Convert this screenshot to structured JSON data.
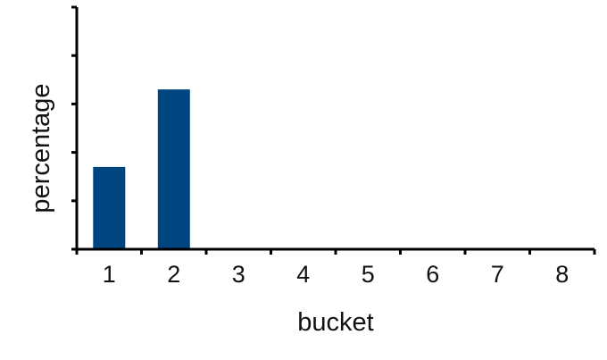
{
  "chart_data": {
    "type": "bar",
    "categories": [
      "1",
      "2",
      "3",
      "4",
      "5",
      "6",
      "7",
      "8"
    ],
    "values": [
      17,
      33,
      0,
      0,
      0,
      0,
      0,
      0
    ],
    "xlabel": "bucket",
    "ylabel": "percentage",
    "ylim": [
      0,
      50
    ],
    "y_ticks": [
      0,
      10,
      20,
      30,
      40,
      50
    ],
    "y_tick_labels_shown": false,
    "grid": false,
    "bar_color": "#00457f",
    "axis_color": "#000000"
  }
}
